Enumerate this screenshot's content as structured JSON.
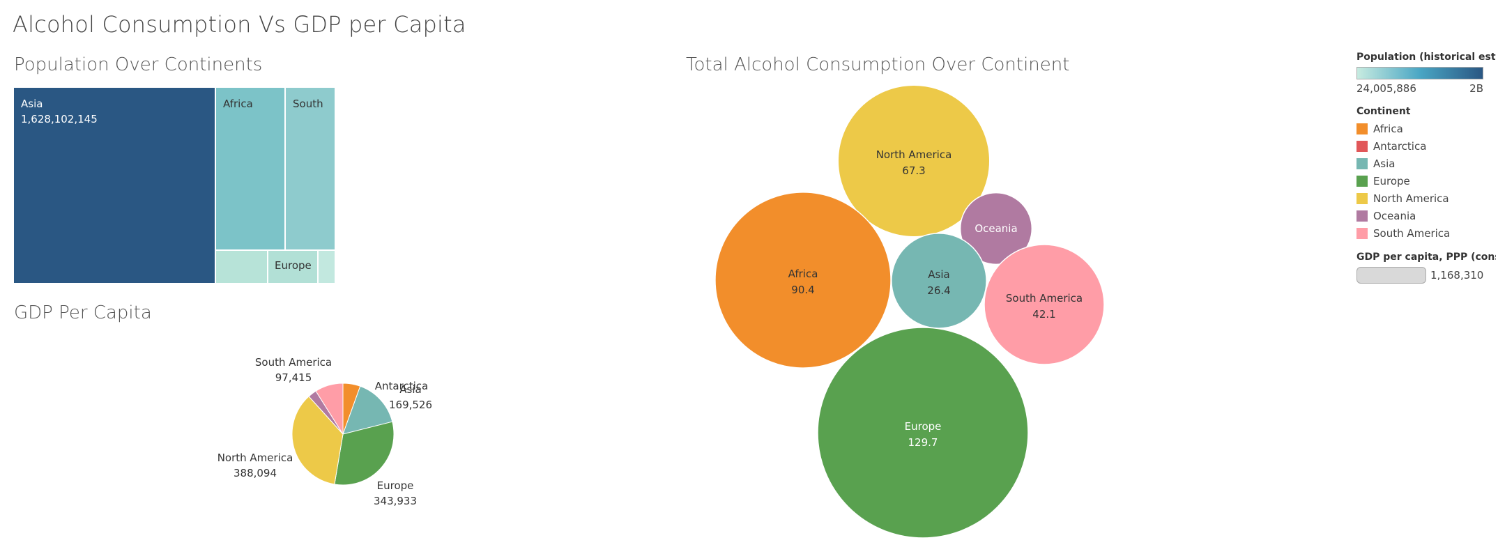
{
  "dashboard": {
    "title": "Alcohol Consumption Vs GDP per Capita"
  },
  "treemap": {
    "title": "Population Over Continents",
    "cells": [
      {
        "name": "Asia",
        "value": "1,628,102,145",
        "color": "#2a5783",
        "text_color": "#ffffff"
      },
      {
        "name": "Africa",
        "value": "",
        "color": "#7cc3c8",
        "text_color": "#333333"
      },
      {
        "name": "South",
        "value": "",
        "color": "#8ecbcd",
        "text_color": "#333333"
      },
      {
        "name": "",
        "value": "",
        "color": "#b7e3d8",
        "text_color": "#333333"
      },
      {
        "name": "Europe",
        "value": "",
        "color": "#b2e0d6",
        "text_color": "#333333"
      },
      {
        "name": "",
        "value": "",
        "color": "#c2e8df",
        "text_color": "#333333"
      }
    ]
  },
  "pie": {
    "title": "GDP Per Capita",
    "slices": [
      {
        "name": "Africa",
        "value": 60000,
        "color": "#f28e2b"
      },
      {
        "name": "Antarctica",
        "value": 0,
        "color": "#e15759"
      },
      {
        "name": "Asia",
        "value": 169526,
        "color": "#76b7b2"
      },
      {
        "name": "Europe",
        "value": 343933,
        "color": "#59a14f"
      },
      {
        "name": "North America",
        "value": 388094,
        "color": "#edc948"
      },
      {
        "name": "Oceania",
        "value": 30000,
        "color": "#b07aa1"
      },
      {
        "name": "South America",
        "value": 97415,
        "color": "#ff9da7"
      }
    ],
    "labels": [
      {
        "line1": "South America",
        "line2": "97,415"
      },
      {
        "line1": "Antarctica",
        "line2": ""
      },
      {
        "line1": "Asia",
        "line2": "169,526"
      },
      {
        "line1": "North America",
        "line2": "388,094"
      },
      {
        "line1": "Europe",
        "line2": "343,933"
      }
    ]
  },
  "bubble": {
    "title": "Total Alcohol Consumption Over Continent",
    "bubbles": [
      {
        "name": "North America",
        "value": 67.3,
        "label": "67.3",
        "color": "#edc948",
        "text_color": "#333333"
      },
      {
        "name": "Africa",
        "value": 90.4,
        "label": "90.4",
        "color": "#f28e2b",
        "text_color": "#333333"
      },
      {
        "name": "Oceania",
        "value": 15,
        "label": "",
        "color": "#b07aa1",
        "text_color": "#ffffff"
      },
      {
        "name": "Asia",
        "value": 26.4,
        "label": "26.4",
        "color": "#76b7b2",
        "text_color": "#333333"
      },
      {
        "name": "South America",
        "value": 42.1,
        "label": "42.1",
        "color": "#ff9da7",
        "text_color": "#333333"
      },
      {
        "name": "Europe",
        "value": 129.7,
        "label": "129.7",
        "color": "#59a14f",
        "text_color": "#ffffff"
      }
    ]
  },
  "legend": {
    "population_title": "Population (historical est..",
    "population_min": "24,005,886",
    "population_max": "2B",
    "continent_title": "Continent",
    "continents": [
      {
        "name": "Africa",
        "color": "#f28e2b"
      },
      {
        "name": "Antarctica",
        "color": "#e15759"
      },
      {
        "name": "Asia",
        "color": "#76b7b2"
      },
      {
        "name": "Europe",
        "color": "#59a14f"
      },
      {
        "name": "North America",
        "color": "#edc948"
      },
      {
        "name": "Oceania",
        "color": "#b07aa1"
      },
      {
        "name": "South America",
        "color": "#ff9da7"
      }
    ],
    "gdp_title": "GDP per capita, PPP (cons..",
    "gdp_value": "1,168,310"
  },
  "chart_data": [
    {
      "type": "treemap",
      "title": "Population Over Continents",
      "categories": [
        "Asia",
        "Africa",
        "South",
        "",
        "Europe",
        ""
      ],
      "values": [
        1628102145,
        500000000,
        350000000,
        140000000,
        140000000,
        40000000
      ]
    },
    {
      "type": "pie",
      "title": "GDP Per Capita",
      "categories": [
        "Africa",
        "Antarctica",
        "Asia",
        "Europe",
        "North America",
        "Oceania",
        "South America"
      ],
      "values": [
        60000,
        0,
        169526,
        343933,
        388094,
        30000,
        97415
      ]
    },
    {
      "type": "bubble",
      "title": "Total Alcohol Consumption Over Continent",
      "categories": [
        "North America",
        "Africa",
        "Oceania",
        "Asia",
        "South America",
        "Europe"
      ],
      "values": [
        67.3,
        90.4,
        15,
        26.4,
        42.1,
        129.7
      ]
    }
  ]
}
